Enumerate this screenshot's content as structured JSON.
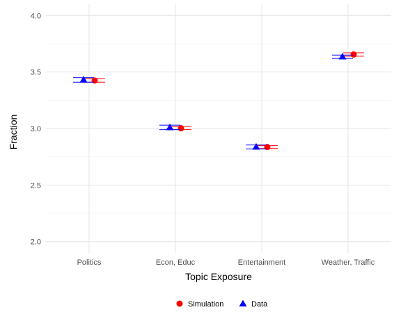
{
  "chart_data": {
    "type": "scatter",
    "title": "",
    "xlabel": "Topic Exposure",
    "ylabel": "Fraction",
    "categories": [
      "Politics",
      "Econ, Educ",
      "Entertainment",
      "Weather, Traffic"
    ],
    "ylim": [
      1.9,
      4.1
    ],
    "yticks": [
      2.0,
      2.5,
      3.0,
      3.5,
      4.0
    ],
    "ytick_labels": [
      "2.0",
      "2.5",
      "3.0",
      "3.5",
      "4.0"
    ],
    "grid": true,
    "legend_position": "bottom",
    "series": [
      {
        "name": "Simulation",
        "marker": "circle",
        "color": "#ff0000",
        "values": [
          3.425,
          3.003,
          2.836,
          3.655
        ],
        "error_low": [
          3.41,
          2.99,
          2.823,
          3.64
        ],
        "error_high": [
          3.44,
          3.016,
          2.849,
          3.67
        ]
      },
      {
        "name": "Data",
        "marker": "triangle",
        "color": "#0000ff",
        "values": [
          3.432,
          3.01,
          2.838,
          3.636
        ],
        "error_low": [
          3.41,
          2.99,
          2.82,
          3.62
        ],
        "error_high": [
          3.45,
          3.03,
          2.855,
          3.65
        ]
      }
    ]
  }
}
